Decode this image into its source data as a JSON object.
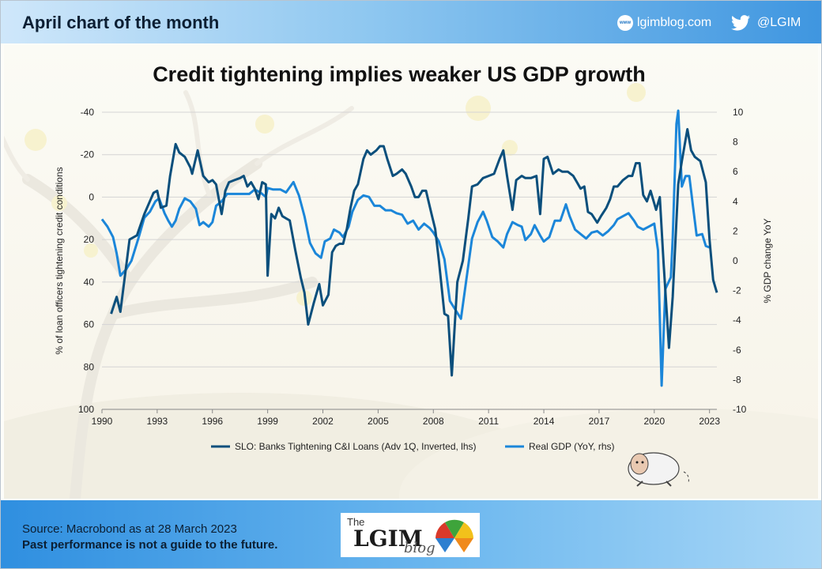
{
  "header": {
    "title": "April chart of the month",
    "site_icon": "www",
    "site": "lgimblog.com",
    "twitter": "@LGIM"
  },
  "footer": {
    "source": "Source: Macrobond as at 28 March 2023",
    "disclaimer": "Past performance is not a guide to the future.",
    "logo_the": "The",
    "logo_main": "LGIM",
    "logo_blog": "blog"
  },
  "colors": {
    "slo_series": "#0b4f7c",
    "gdp_series": "#1b86d9",
    "grid": "#d4d4d4",
    "header_accent": "#3f96e0"
  },
  "chart_data": {
    "type": "line",
    "title": "Credit tightening implies weaker US GDP growth",
    "ylabel_left": "% of loan officers tightening credit conditions",
    "ylabel_right": "% GDP change  YoY",
    "left_axis": {
      "min": 100,
      "max": -40,
      "inverted": true,
      "ticks": [
        -40,
        -20,
        0,
        20,
        40,
        60,
        80,
        100
      ]
    },
    "right_axis": {
      "min": -10,
      "max": 10,
      "ticks": [
        10,
        8,
        6,
        4,
        2,
        0,
        -2,
        -4,
        -6,
        -8,
        -10
      ]
    },
    "x_axis": {
      "min": 1990,
      "max": 2023.4,
      "ticks": [
        1990,
        1993,
        1996,
        1999,
        2002,
        2005,
        2008,
        2011,
        2014,
        2017,
        2020,
        2023
      ]
    },
    "grid": "horizontal",
    "legend_position": "bottom",
    "series": [
      {
        "name": "SLO: Banks Tightening C&I Loans (Adv 1Q, Inverted, lhs)",
        "axis": "left",
        "points": [
          [
            1990.5,
            55
          ],
          [
            1990.8,
            47
          ],
          [
            1991.0,
            54
          ],
          [
            1991.5,
            20
          ],
          [
            1991.9,
            18
          ],
          [
            1992.3,
            8
          ],
          [
            1992.8,
            -2
          ],
          [
            1993.0,
            -3
          ],
          [
            1993.2,
            5
          ],
          [
            1993.5,
            4
          ],
          [
            1993.7,
            -10
          ],
          [
            1994.0,
            -25
          ],
          [
            1994.2,
            -21
          ],
          [
            1994.5,
            -19
          ],
          [
            1994.8,
            -14
          ],
          [
            1994.9,
            -11
          ],
          [
            1995.2,
            -22
          ],
          [
            1995.5,
            -10
          ],
          [
            1995.8,
            -7
          ],
          [
            1996.0,
            -8
          ],
          [
            1996.2,
            -6
          ],
          [
            1996.5,
            8
          ],
          [
            1996.7,
            -3
          ],
          [
            1996.9,
            -7
          ],
          [
            1997.2,
            -8
          ],
          [
            1997.5,
            -9
          ],
          [
            1997.7,
            -10
          ],
          [
            1997.9,
            -5
          ],
          [
            1998.1,
            -7
          ],
          [
            1998.3,
            -4
          ],
          [
            1998.5,
            1
          ],
          [
            1998.7,
            -7
          ],
          [
            1998.9,
            -6
          ],
          [
            1999.0,
            37
          ],
          [
            1999.2,
            8
          ],
          [
            1999.4,
            10
          ],
          [
            1999.6,
            5
          ],
          [
            1999.8,
            9
          ],
          [
            2000.0,
            10
          ],
          [
            2000.2,
            11
          ],
          [
            2000.5,
            25
          ],
          [
            2000.8,
            38
          ],
          [
            2001.0,
            45
          ],
          [
            2001.2,
            60
          ],
          [
            2001.5,
            50
          ],
          [
            2001.8,
            41
          ],
          [
            2002.0,
            51
          ],
          [
            2002.3,
            46
          ],
          [
            2002.5,
            26
          ],
          [
            2002.7,
            23
          ],
          [
            2002.9,
            22
          ],
          [
            2003.1,
            22
          ],
          [
            2003.3,
            15
          ],
          [
            2003.5,
            5
          ],
          [
            2003.7,
            -3
          ],
          [
            2003.9,
            -6
          ],
          [
            2004.2,
            -18
          ],
          [
            2004.4,
            -22
          ],
          [
            2004.6,
            -20
          ],
          [
            2004.9,
            -22
          ],
          [
            2005.1,
            -24
          ],
          [
            2005.3,
            -24
          ],
          [
            2005.5,
            -18
          ],
          [
            2005.8,
            -10
          ],
          [
            2006.0,
            -11
          ],
          [
            2006.3,
            -13
          ],
          [
            2006.5,
            -11
          ],
          [
            2006.8,
            -5
          ],
          [
            2007.0,
            0
          ],
          [
            2007.2,
            0
          ],
          [
            2007.4,
            -3
          ],
          [
            2007.6,
            -3
          ],
          [
            2007.9,
            8
          ],
          [
            2008.1,
            15
          ],
          [
            2008.3,
            30
          ],
          [
            2008.6,
            55
          ],
          [
            2008.8,
            56
          ],
          [
            2009.0,
            84
          ],
          [
            2009.3,
            40
          ],
          [
            2009.6,
            30
          ],
          [
            2009.9,
            10
          ],
          [
            2010.1,
            -5
          ],
          [
            2010.4,
            -6
          ],
          [
            2010.7,
            -9
          ],
          [
            2011.0,
            -10
          ],
          [
            2011.3,
            -11
          ],
          [
            2011.6,
            -18
          ],
          [
            2011.8,
            -22
          ],
          [
            2012.0,
            -10
          ],
          [
            2012.3,
            6
          ],
          [
            2012.5,
            -8
          ],
          [
            2012.8,
            -10
          ],
          [
            2013.0,
            -9
          ],
          [
            2013.3,
            -9
          ],
          [
            2013.6,
            -10
          ],
          [
            2013.8,
            8
          ],
          [
            2014.0,
            -18
          ],
          [
            2014.2,
            -19
          ],
          [
            2014.5,
            -11
          ],
          [
            2014.8,
            -13
          ],
          [
            2015.0,
            -12
          ],
          [
            2015.3,
            -12
          ],
          [
            2015.6,
            -10
          ],
          [
            2015.8,
            -7
          ],
          [
            2016.0,
            -4
          ],
          [
            2016.2,
            -5
          ],
          [
            2016.4,
            7
          ],
          [
            2016.6,
            8
          ],
          [
            2016.9,
            12
          ],
          [
            2017.1,
            9
          ],
          [
            2017.4,
            5
          ],
          [
            2017.6,
            1
          ],
          [
            2017.8,
            -5
          ],
          [
            2018.0,
            -5
          ],
          [
            2018.3,
            -8
          ],
          [
            2018.6,
            -10
          ],
          [
            2018.8,
            -10
          ],
          [
            2019.0,
            -16
          ],
          [
            2019.2,
            -16
          ],
          [
            2019.4,
            -1
          ],
          [
            2019.6,
            2
          ],
          [
            2019.8,
            -3
          ],
          [
            2020.1,
            6
          ],
          [
            2020.3,
            0
          ],
          [
            2020.5,
            30
          ],
          [
            2020.8,
            71
          ],
          [
            2021.0,
            47
          ],
          [
            2021.3,
            -6
          ],
          [
            2021.5,
            -17
          ],
          [
            2021.8,
            -32
          ],
          [
            2022.0,
            -22
          ],
          [
            2022.2,
            -19
          ],
          [
            2022.5,
            -17
          ],
          [
            2022.8,
            -7
          ],
          [
            2023.0,
            20
          ],
          [
            2023.2,
            39
          ],
          [
            2023.4,
            45
          ]
        ]
      },
      {
        "name": "Real GDP (YoY, rhs)",
        "axis": "right",
        "points": [
          [
            1990.0,
            2.8
          ],
          [
            1990.3,
            2.3
          ],
          [
            1990.6,
            1.6
          ],
          [
            1990.8,
            0.5
          ],
          [
            1991.0,
            -1.0
          ],
          [
            1991.3,
            -0.6
          ],
          [
            1991.6,
            0.0
          ],
          [
            1992.0,
            1.6
          ],
          [
            1992.3,
            2.9
          ],
          [
            1992.6,
            3.3
          ],
          [
            1992.9,
            4.0
          ],
          [
            1993.1,
            4.2
          ],
          [
            1993.4,
            3.2
          ],
          [
            1993.6,
            2.7
          ],
          [
            1993.8,
            2.3
          ],
          [
            1994.0,
            2.7
          ],
          [
            1994.2,
            3.5
          ],
          [
            1994.5,
            4.2
          ],
          [
            1994.8,
            4.0
          ],
          [
            1995.1,
            3.5
          ],
          [
            1995.3,
            2.4
          ],
          [
            1995.5,
            2.6
          ],
          [
            1995.8,
            2.3
          ],
          [
            1996.0,
            2.6
          ],
          [
            1996.2,
            3.7
          ],
          [
            1996.5,
            4.0
          ],
          [
            1996.8,
            4.5
          ],
          [
            1997.2,
            4.5
          ],
          [
            1997.6,
            4.5
          ],
          [
            1998.0,
            4.5
          ],
          [
            1998.3,
            4.8
          ],
          [
            1998.6,
            4.6
          ],
          [
            1998.9,
            4.3
          ],
          [
            1999.0,
            4.9
          ],
          [
            1999.3,
            4.8
          ],
          [
            1999.7,
            4.8
          ],
          [
            2000.0,
            4.6
          ],
          [
            2000.4,
            5.3
          ],
          [
            2000.7,
            4.4
          ],
          [
            2001.0,
            3.0
          ],
          [
            2001.3,
            1.2
          ],
          [
            2001.6,
            0.5
          ],
          [
            2001.9,
            0.2
          ],
          [
            2002.1,
            1.3
          ],
          [
            2002.4,
            1.5
          ],
          [
            2002.6,
            2.1
          ],
          [
            2002.9,
            1.9
          ],
          [
            2003.1,
            1.6
          ],
          [
            2003.4,
            2.3
          ],
          [
            2003.6,
            3.3
          ],
          [
            2003.9,
            4.1
          ],
          [
            2004.2,
            4.4
          ],
          [
            2004.5,
            4.3
          ],
          [
            2004.8,
            3.7
          ],
          [
            2005.1,
            3.7
          ],
          [
            2005.4,
            3.4
          ],
          [
            2005.7,
            3.4
          ],
          [
            2006.0,
            3.2
          ],
          [
            2006.3,
            3.1
          ],
          [
            2006.6,
            2.5
          ],
          [
            2006.9,
            2.7
          ],
          [
            2007.2,
            2.1
          ],
          [
            2007.5,
            2.5
          ],
          [
            2007.8,
            2.2
          ],
          [
            2008.0,
            1.9
          ],
          [
            2008.3,
            1.3
          ],
          [
            2008.6,
            0.1
          ],
          [
            2008.9,
            -2.7
          ],
          [
            2009.2,
            -3.3
          ],
          [
            2009.5,
            -3.9
          ],
          [
            2009.8,
            -1.2
          ],
          [
            2010.1,
            1.5
          ],
          [
            2010.4,
            2.6
          ],
          [
            2010.7,
            3.3
          ],
          [
            2010.9,
            2.7
          ],
          [
            2011.2,
            1.6
          ],
          [
            2011.5,
            1.3
          ],
          [
            2011.8,
            0.9
          ],
          [
            2012.0,
            1.8
          ],
          [
            2012.3,
            2.6
          ],
          [
            2012.6,
            2.4
          ],
          [
            2012.8,
            2.3
          ],
          [
            2013.0,
            1.4
          ],
          [
            2013.3,
            1.8
          ],
          [
            2013.5,
            2.4
          ],
          [
            2013.8,
            1.7
          ],
          [
            2014.0,
            1.3
          ],
          [
            2014.3,
            1.6
          ],
          [
            2014.6,
            2.7
          ],
          [
            2014.9,
            2.7
          ],
          [
            2015.2,
            3.8
          ],
          [
            2015.4,
            3.0
          ],
          [
            2015.7,
            2.1
          ],
          [
            2016.0,
            1.8
          ],
          [
            2016.3,
            1.5
          ],
          [
            2016.6,
            1.9
          ],
          [
            2016.9,
            2.0
          ],
          [
            2017.2,
            1.7
          ],
          [
            2017.5,
            2.0
          ],
          [
            2017.8,
            2.4
          ],
          [
            2018.0,
            2.8
          ],
          [
            2018.3,
            3.0
          ],
          [
            2018.6,
            3.2
          ],
          [
            2018.9,
            2.7
          ],
          [
            2019.1,
            2.3
          ],
          [
            2019.4,
            2.1
          ],
          [
            2019.7,
            2.3
          ],
          [
            2020.0,
            2.5
          ],
          [
            2020.2,
            0.7
          ],
          [
            2020.4,
            -8.4
          ],
          [
            2020.6,
            -1.9
          ],
          [
            2020.9,
            -1.1
          ],
          [
            2021.0,
            1.5
          ],
          [
            2021.2,
            9.2
          ],
          [
            2021.3,
            12.5
          ],
          [
            2021.5,
            5.0
          ],
          [
            2021.7,
            5.7
          ],
          [
            2021.9,
            5.7
          ],
          [
            2022.1,
            3.7
          ],
          [
            2022.3,
            1.7
          ],
          [
            2022.6,
            1.8
          ],
          [
            2022.8,
            1.0
          ],
          [
            2023.0,
            0.9
          ]
        ]
      }
    ]
  }
}
